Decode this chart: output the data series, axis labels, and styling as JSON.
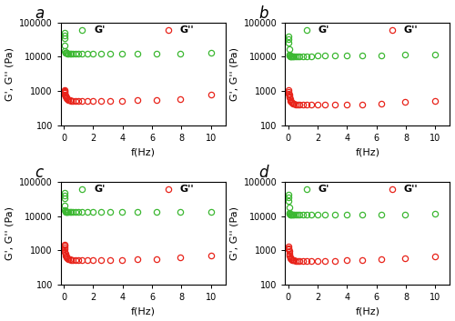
{
  "panels": [
    "a",
    "b",
    "c",
    "d"
  ],
  "green_color": "#3cb832",
  "red_color": "#e8231a",
  "xlabel": "f(Hz)",
  "ylabel": "G', G'' (Pa)",
  "ylim": [
    100,
    100000
  ],
  "xlim": [
    -0.2,
    11
  ],
  "xticks": [
    0,
    2,
    4,
    6,
    8,
    10
  ],
  "yticks": [
    100,
    1000,
    10000,
    100000
  ],
  "yticklabels": [
    "100",
    "1000",
    "10000",
    "100000"
  ],
  "panel_a": {
    "Gprime_x": [
      0.03,
      0.04,
      0.05,
      0.06,
      0.08,
      0.1,
      0.13,
      0.16,
      0.2,
      0.25,
      0.32,
      0.4,
      0.5,
      0.63,
      0.79,
      1.0,
      1.26,
      1.58,
      2.0,
      2.51,
      3.16,
      3.98,
      5.01,
      6.31,
      7.94,
      10.0
    ],
    "Gprime_y": [
      50000,
      42000,
      35000,
      22000,
      14500,
      13500,
      13200,
      13000,
      12800,
      12700,
      12650,
      12600,
      12550,
      12500,
      12500,
      12500,
      12500,
      12500,
      12500,
      12550,
      12600,
      12600,
      12650,
      12650,
      12700,
      12800
    ],
    "Gdprime_x": [
      0.03,
      0.04,
      0.05,
      0.06,
      0.08,
      0.1,
      0.13,
      0.16,
      0.2,
      0.25,
      0.32,
      0.4,
      0.5,
      0.63,
      0.79,
      1.0,
      1.26,
      1.58,
      2.0,
      2.51,
      3.16,
      3.98,
      5.01,
      6.31,
      7.94,
      10.0
    ],
    "Gdprime_y": [
      1050,
      980,
      920,
      870,
      810,
      760,
      710,
      660,
      620,
      580,
      560,
      540,
      525,
      515,
      510,
      510,
      510,
      510,
      510,
      515,
      520,
      525,
      535,
      545,
      580,
      800
    ]
  },
  "panel_b": {
    "Gprime_x": [
      0.03,
      0.04,
      0.05,
      0.06,
      0.08,
      0.1,
      0.13,
      0.16,
      0.2,
      0.25,
      0.32,
      0.4,
      0.5,
      0.63,
      0.79,
      1.0,
      1.26,
      1.58,
      2.0,
      2.51,
      3.16,
      3.98,
      5.01,
      6.31,
      7.94,
      10.0
    ],
    "Gprime_y": [
      40000,
      32000,
      25000,
      17000,
      11500,
      10800,
      10500,
      10300,
      10200,
      10150,
      10100,
      10100,
      10100,
      10100,
      10150,
      10200,
      10300,
      10500,
      10700,
      10900,
      11000,
      11100,
      11100,
      11200,
      11300,
      11500
    ],
    "Gdprime_x": [
      0.03,
      0.04,
      0.05,
      0.06,
      0.08,
      0.1,
      0.13,
      0.16,
      0.2,
      0.25,
      0.32,
      0.4,
      0.5,
      0.63,
      0.79,
      1.0,
      1.26,
      1.58,
      2.0,
      2.51,
      3.16,
      3.98,
      5.01,
      6.31,
      7.94,
      10.0
    ],
    "Gdprime_y": [
      1050,
      950,
      850,
      780,
      700,
      640,
      570,
      520,
      480,
      455,
      435,
      420,
      410,
      405,
      400,
      398,
      396,
      396,
      396,
      398,
      400,
      405,
      410,
      430,
      470,
      520
    ]
  },
  "panel_c": {
    "Gprime_x": [
      0.03,
      0.04,
      0.05,
      0.06,
      0.08,
      0.1,
      0.13,
      0.16,
      0.2,
      0.25,
      0.32,
      0.4,
      0.5,
      0.63,
      0.79,
      1.0,
      1.26,
      1.58,
      2.0,
      2.51,
      3.16,
      3.98,
      5.01,
      6.31,
      7.94,
      10.0
    ],
    "Gprime_y": [
      48000,
      40000,
      33000,
      20000,
      14800,
      14000,
      13600,
      13400,
      13200,
      13100,
      13000,
      12950,
      12900,
      12900,
      12900,
      12900,
      12900,
      12900,
      12900,
      12950,
      13000,
      13000,
      13050,
      13100,
      13200,
      13300
    ],
    "Gdprime_x": [
      0.03,
      0.04,
      0.05,
      0.06,
      0.08,
      0.1,
      0.13,
      0.16,
      0.2,
      0.25,
      0.32,
      0.4,
      0.5,
      0.63,
      0.79,
      1.0,
      1.26,
      1.58,
      2.0,
      2.51,
      3.16,
      3.98,
      5.01,
      6.31,
      7.94,
      10.0
    ],
    "Gdprime_y": [
      1500,
      1350,
      1200,
      1050,
      900,
      800,
      720,
      660,
      615,
      580,
      560,
      545,
      530,
      520,
      515,
      510,
      505,
      505,
      505,
      510,
      515,
      520,
      535,
      555,
      610,
      700
    ]
  },
  "panel_d": {
    "Gprime_x": [
      0.03,
      0.04,
      0.05,
      0.06,
      0.08,
      0.1,
      0.13,
      0.16,
      0.2,
      0.25,
      0.32,
      0.4,
      0.5,
      0.63,
      0.79,
      1.0,
      1.26,
      1.58,
      2.0,
      2.51,
      3.16,
      3.98,
      5.01,
      6.31,
      7.94,
      10.0
    ],
    "Gprime_y": [
      42000,
      35000,
      27000,
      18000,
      12500,
      11500,
      11200,
      11000,
      10900,
      10850,
      10820,
      10800,
      10800,
      10800,
      10800,
      10800,
      10800,
      10850,
      10900,
      10950,
      11000,
      11050,
      11100,
      11150,
      11250,
      11400
    ],
    "Gdprime_x": [
      0.03,
      0.04,
      0.05,
      0.06,
      0.08,
      0.1,
      0.13,
      0.16,
      0.2,
      0.25,
      0.32,
      0.4,
      0.5,
      0.63,
      0.79,
      1.0,
      1.26,
      1.58,
      2.0,
      2.51,
      3.16,
      3.98,
      5.01,
      6.31,
      7.94,
      10.0
    ],
    "Gdprime_y": [
      1300,
      1180,
      1050,
      930,
      810,
      720,
      640,
      590,
      555,
      530,
      515,
      505,
      498,
      492,
      488,
      485,
      485,
      485,
      488,
      492,
      498,
      505,
      515,
      535,
      580,
      670
    ]
  },
  "legend_gprime_label": "G'",
  "legend_gdprime_label": "G''",
  "marker_size": 4.5,
  "background_color": "#ffffff",
  "panel_label_fontsize": 12,
  "axis_label_fontsize": 8,
  "tick_fontsize": 7,
  "legend_fontsize": 8
}
